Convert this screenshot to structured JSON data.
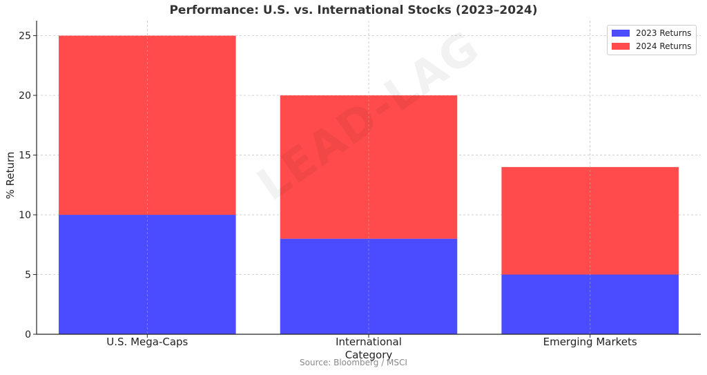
{
  "chart_data": {
    "type": "bar",
    "stacked": true,
    "title": "Performance: U.S. vs. International Stocks (2023–2024)",
    "xlabel": "Category",
    "ylabel": "% Return",
    "categories": [
      "U.S. Mega-Caps",
      "International",
      "Emerging Markets"
    ],
    "series": [
      {
        "name": "2023 Returns",
        "values": [
          10,
          8,
          5
        ],
        "color": "#4b4bff"
      },
      {
        "name": "2024 Returns",
        "values": [
          15,
          12,
          9
        ],
        "color": "#ff4b4b"
      }
    ],
    "ylim": [
      0,
      26.25
    ],
    "yticks": [
      "0",
      "5",
      "10",
      "15",
      "20",
      "25"
    ],
    "grid": true,
    "legend_position": "top-right",
    "source_note": "Source: Bloomberg / MSCI",
    "watermark": "LEAD-LAG"
  }
}
